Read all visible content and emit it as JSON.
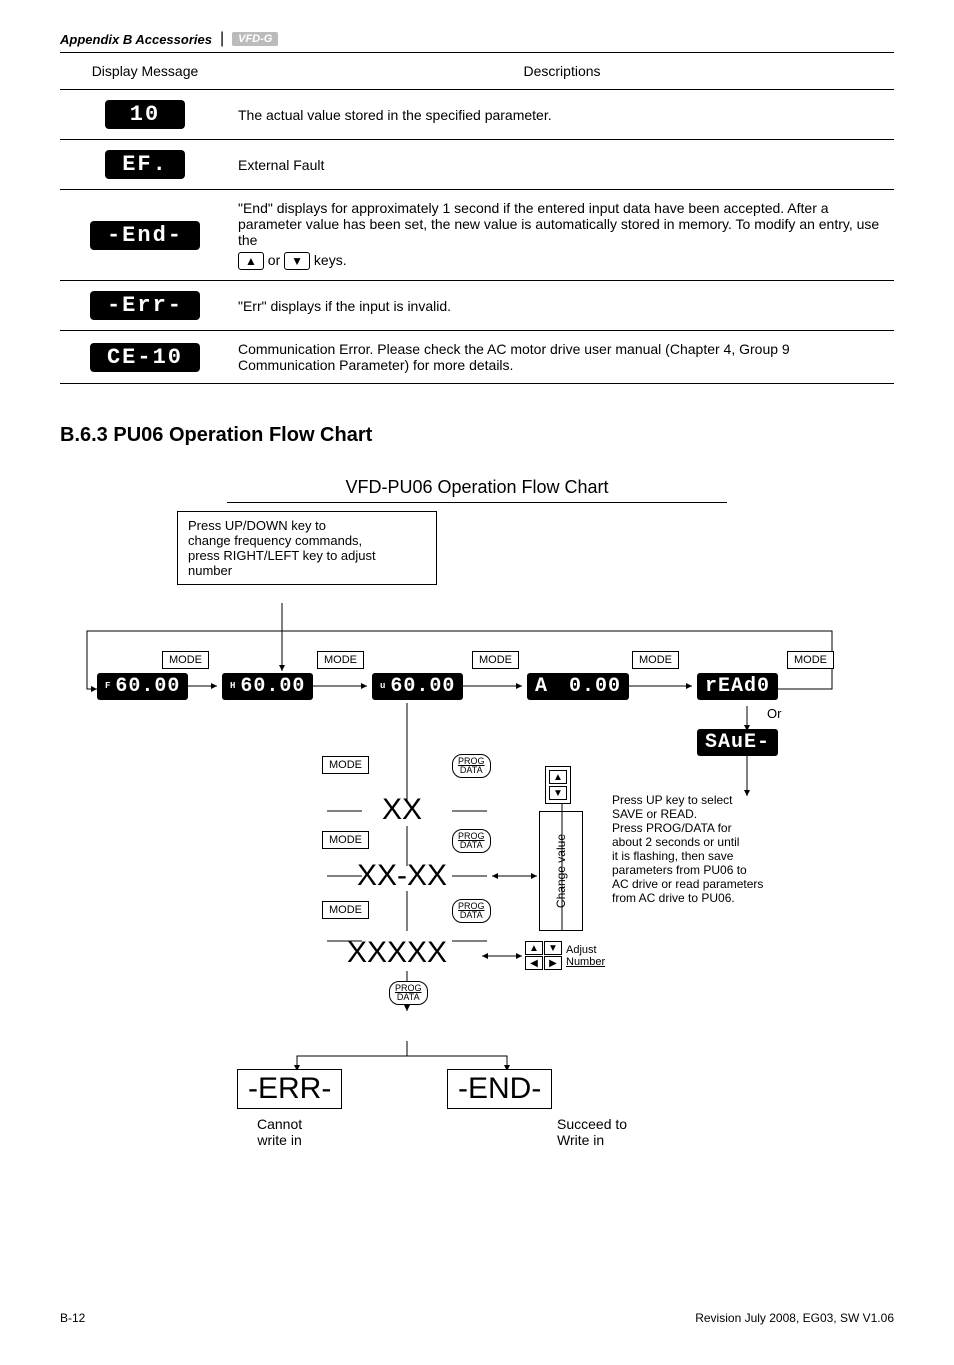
{
  "header": {
    "appendix": "Appendix B  Accessories",
    "badge": "VFD-G"
  },
  "table": {
    "head": {
      "col1": "Display Message",
      "col2": "Descriptions"
    },
    "rows": [
      {
        "lcd": "10",
        "lcd_wide": false,
        "desc_html": "plain",
        "desc": "The actual value stored in the specified parameter."
      },
      {
        "lcd": "EF.",
        "lcd_wide": false,
        "desc_html": "plain",
        "desc": "External Fault"
      },
      {
        "lcd": "-End-",
        "lcd_wide": true,
        "desc_html": "end",
        "p1": "\"End\" displays for approximately 1 second if the entered input data have been accepted. After a parameter value has been set, the new value is automatically stored in memory. To modify an entry, use the",
        "keys_suffix": "keys."
      },
      {
        "lcd": "-Err-",
        "lcd_wide": true,
        "desc_html": "plain",
        "desc": "\"Err\" displays if the input is invalid."
      },
      {
        "lcd": "CE-10",
        "lcd_wide": true,
        "desc_html": "plain",
        "desc": "Communication Error. Please check the AC motor drive user manual (Chapter 4, Group 9 Communication Parameter) for more details."
      }
    ]
  },
  "section_title": "B.6.3 PU06 Operation Flow Chart",
  "flow": {
    "title": "VFD-PU06 Operation Flow Chart",
    "top_note": "Press UP/DOWN key to\nchange frequency commands,\npress RIGHT/LEFT key to adjust\nnumber",
    "mode": "MODE",
    "lcd_f": "60.00",
    "lcd_h": "60.00",
    "lcd_u": "60.00",
    "lcd_a": "0.00",
    "lcd_a_prefix": "A",
    "lcd_read": "rEAd0",
    "lcd_save": "SAuE-",
    "or": "Or",
    "xx": "XX",
    "xxxx": "XX-XX",
    "xxxxx": "XXXXX",
    "prog": "PROG",
    "data": "DATA",
    "change_value": "Change value",
    "side_note": "Press UP key to select\nSAVE or READ.\nPress PROG/DATA for\nabout 2 seconds or until\nit is flashing, then save\nparameters from PU06 to\nAC drive or read parameters\nfrom AC drive to PU06.",
    "adjust": "Adjust",
    "number": "Number",
    "err": "-ERR-",
    "end": "-END-",
    "cannot": "Cannot\nwrite in",
    "succeed": "Succeed to\nWrite in"
  },
  "footer": {
    "left": "B-12",
    "right": "Revision July 2008, EG03, SW V1.06"
  }
}
